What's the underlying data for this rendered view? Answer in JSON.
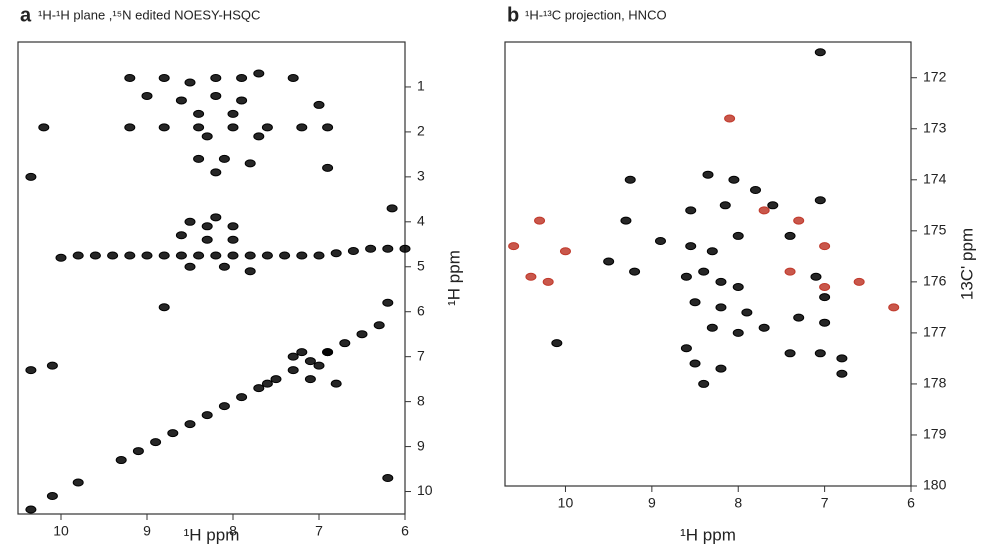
{
  "chart_data": [
    {
      "type": "scatter",
      "panel_label": "a",
      "title": "¹H-¹H plane ,¹⁵N edited NOESY-HSQC",
      "x_label": "¹H ppm",
      "y_label": "¹H ppm",
      "xlim": [
        10.5,
        6
      ],
      "ylim": [
        0,
        10.5
      ],
      "xticks": [
        10,
        9,
        8,
        7,
        6
      ],
      "yticks": [
        1,
        2,
        3,
        4,
        5,
        6,
        7,
        8,
        9,
        10
      ],
      "series": [
        {
          "color": "#000000",
          "x": [
            9.2,
            8.8,
            8.5,
            8.2,
            7.9,
            7.7,
            7.3,
            9.0,
            8.6,
            8.2,
            7.9,
            7.0,
            8.4,
            8.0,
            9.2,
            8.8,
            8.4,
            8.0,
            7.6,
            7.2,
            6.9,
            10.2,
            8.3,
            7.7,
            8.4,
            8.1,
            7.8,
            6.9,
            8.2,
            8.5,
            8.2,
            8.0,
            8.6,
            8.3,
            8.0,
            8.3,
            9.8,
            9.6,
            9.4,
            9.2,
            9.0,
            8.8,
            8.6,
            8.4,
            8.2,
            8.0,
            7.8,
            7.6,
            7.4,
            7.2,
            7.0,
            6.8,
            6.6,
            6.4,
            6.2,
            6.0,
            8.5,
            8.1,
            7.8,
            10.35,
            10.0,
            6.15,
            6.2,
            8.8,
            9.3,
            9.1,
            8.9,
            8.7,
            8.5,
            8.3,
            8.1,
            7.9,
            7.7,
            7.5,
            7.3,
            7.1,
            6.9,
            6.7,
            6.5,
            6.3,
            7.2,
            6.9,
            7.0,
            6.8,
            7.1,
            7.6,
            7.3,
            10.35,
            10.1,
            9.8,
            10.35,
            10.1,
            6.2
          ],
          "y": [
            0.8,
            0.8,
            0.9,
            0.8,
            0.8,
            0.7,
            0.8,
            1.2,
            1.3,
            1.2,
            1.3,
            1.4,
            1.6,
            1.6,
            1.9,
            1.9,
            1.9,
            1.9,
            1.9,
            1.9,
            1.9,
            1.9,
            2.1,
            2.1,
            2.6,
            2.6,
            2.7,
            2.8,
            2.9,
            4.0,
            3.9,
            4.1,
            4.3,
            4.4,
            4.4,
            4.1,
            4.75,
            4.75,
            4.75,
            4.75,
            4.75,
            4.75,
            4.75,
            4.75,
            4.75,
            4.75,
            4.75,
            4.75,
            4.75,
            4.75,
            4.75,
            4.7,
            4.65,
            4.6,
            4.6,
            4.6,
            5.0,
            5.0,
            5.1,
            3.0,
            4.8,
            3.7,
            5.8,
            5.9,
            9.3,
            9.1,
            8.9,
            8.7,
            8.5,
            8.3,
            8.1,
            7.9,
            7.7,
            7.5,
            7.3,
            7.1,
            6.9,
            6.7,
            6.5,
            6.3,
            6.9,
            6.9,
            7.2,
            7.6,
            7.5,
            7.6,
            7.0,
            10.4,
            10.1,
            9.8,
            7.3,
            7.2,
            9.7
          ]
        }
      ]
    },
    {
      "type": "scatter",
      "panel_label": "b",
      "title": "¹H-¹³C projection, HNCO",
      "x_label": "¹H ppm",
      "y_label": "13C' ppm",
      "xlim": [
        10.7,
        6
      ],
      "ylim": [
        171.3,
        180
      ],
      "xticks": [
        10,
        9,
        8,
        7,
        6
      ],
      "yticks": [
        172,
        173,
        174,
        175,
        176,
        177,
        178,
        179,
        180
      ],
      "series": [
        {
          "color": "#000000",
          "x": [
            7.05,
            9.25,
            8.35,
            8.05,
            7.8,
            7.05,
            8.55,
            8.15,
            7.6,
            9.3,
            8.9,
            8.55,
            8.3,
            8.0,
            7.4,
            9.5,
            9.2,
            8.6,
            8.4,
            8.2,
            8.0,
            8.5,
            8.2,
            7.9,
            8.3,
            8.0,
            7.7,
            7.3,
            7.0,
            7.0,
            10.1,
            8.5,
            8.2,
            8.6,
            7.4,
            7.05,
            6.8,
            6.8,
            7.1,
            8.4
          ],
          "y": [
            171.5,
            174.0,
            173.9,
            174.0,
            174.2,
            174.4,
            174.6,
            174.5,
            174.5,
            174.8,
            175.2,
            175.3,
            175.4,
            175.1,
            175.1,
            175.6,
            175.8,
            175.9,
            175.8,
            176.0,
            176.1,
            176.4,
            176.5,
            176.6,
            176.9,
            177.0,
            176.9,
            176.7,
            176.3,
            176.8,
            177.2,
            177.6,
            177.7,
            177.3,
            177.4,
            177.4,
            177.5,
            177.8,
            175.9,
            178.0
          ]
        },
        {
          "color": "#c0392b",
          "x": [
            10.6,
            10.3,
            10.4,
            10.2,
            10.0,
            8.1,
            7.7,
            7.3,
            7.0,
            7.0,
            6.6,
            6.2,
            7.4
          ],
          "y": [
            175.3,
            174.8,
            175.9,
            176.0,
            175.4,
            172.8,
            174.6,
            174.8,
            175.3,
            176.1,
            176.0,
            176.5,
            175.8
          ]
        }
      ]
    }
  ]
}
